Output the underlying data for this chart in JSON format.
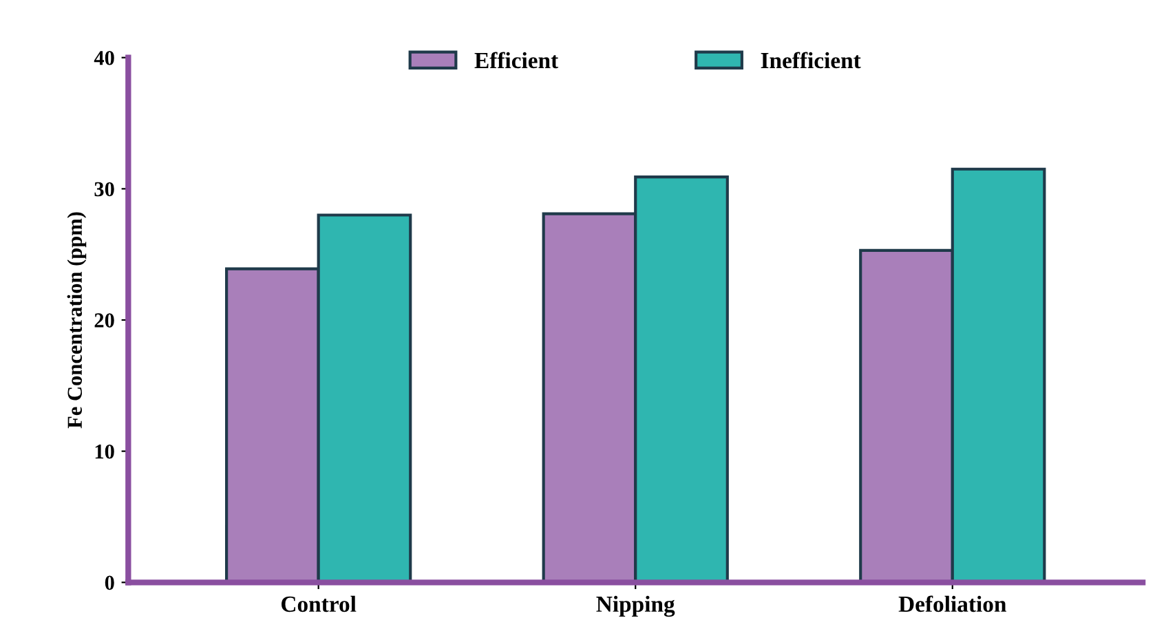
{
  "chart_data": {
    "type": "bar",
    "ylabel": "Fe Concentration (ppm)",
    "categories": [
      "Control",
      "Nipping",
      "Defoliation"
    ],
    "series": [
      {
        "name": "Efficient",
        "color": "#a97fba",
        "values": [
          23.9,
          28.1,
          25.3
        ]
      },
      {
        "name": "Inefficient",
        "color": "#2fb6b0",
        "values": [
          28.0,
          30.9,
          31.5
        ]
      }
    ],
    "ylim": [
      0,
      40
    ],
    "yticks": [
      0,
      10,
      20,
      30,
      40
    ],
    "grid": false,
    "legend": "top"
  }
}
